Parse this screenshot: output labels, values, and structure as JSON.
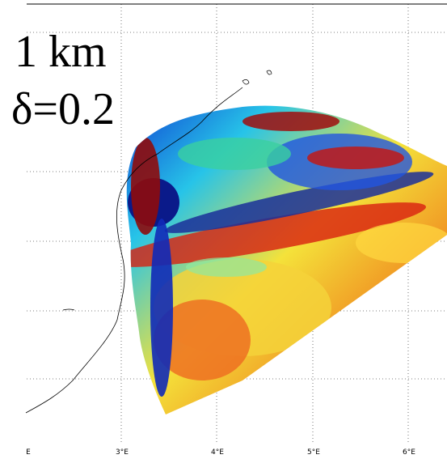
{
  "panel": {
    "resolution": "1 km",
    "parameter": "δ=0.2"
  },
  "x_labels": [
    "E",
    "3°E",
    "4°E",
    "5°E",
    "6°E"
  ]
}
